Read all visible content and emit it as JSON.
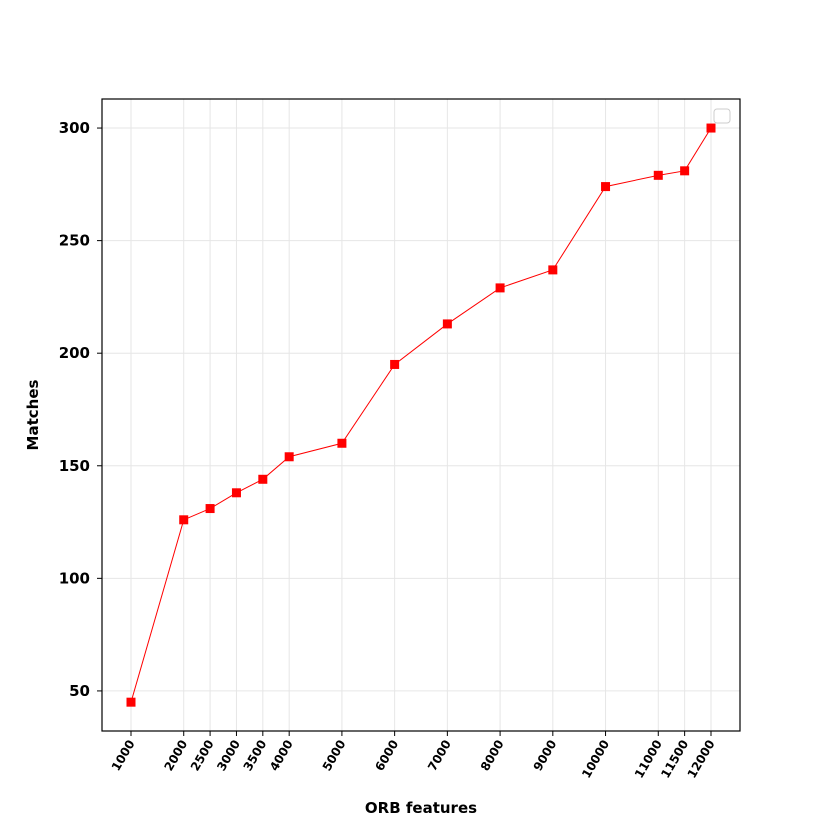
{
  "chart_data": {
    "type": "line",
    "x_label": "ORB features",
    "y_label": "Matches",
    "x": [
      1000,
      2000,
      2500,
      3000,
      3500,
      4000,
      5000,
      6000,
      7000,
      8000,
      9000,
      10000,
      11000,
      11500,
      12000
    ],
    "series": [
      {
        "color": "#ff0000",
        "values": [
          45,
          126,
          131,
          138,
          144,
          154,
          160,
          195,
          213,
          229,
          237,
          274,
          279,
          281,
          300
        ]
      }
    ],
    "xlim": [
      450,
      12550
    ],
    "ylim": [
      32.2,
      312.9
    ],
    "xticks": [
      1000,
      2000,
      2500,
      3000,
      3500,
      4000,
      5000,
      6000,
      7000,
      8000,
      9000,
      10000,
      11000,
      11500,
      12000
    ],
    "yticks": [
      50,
      100,
      150,
      200,
      250,
      300
    ],
    "grid": true
  }
}
